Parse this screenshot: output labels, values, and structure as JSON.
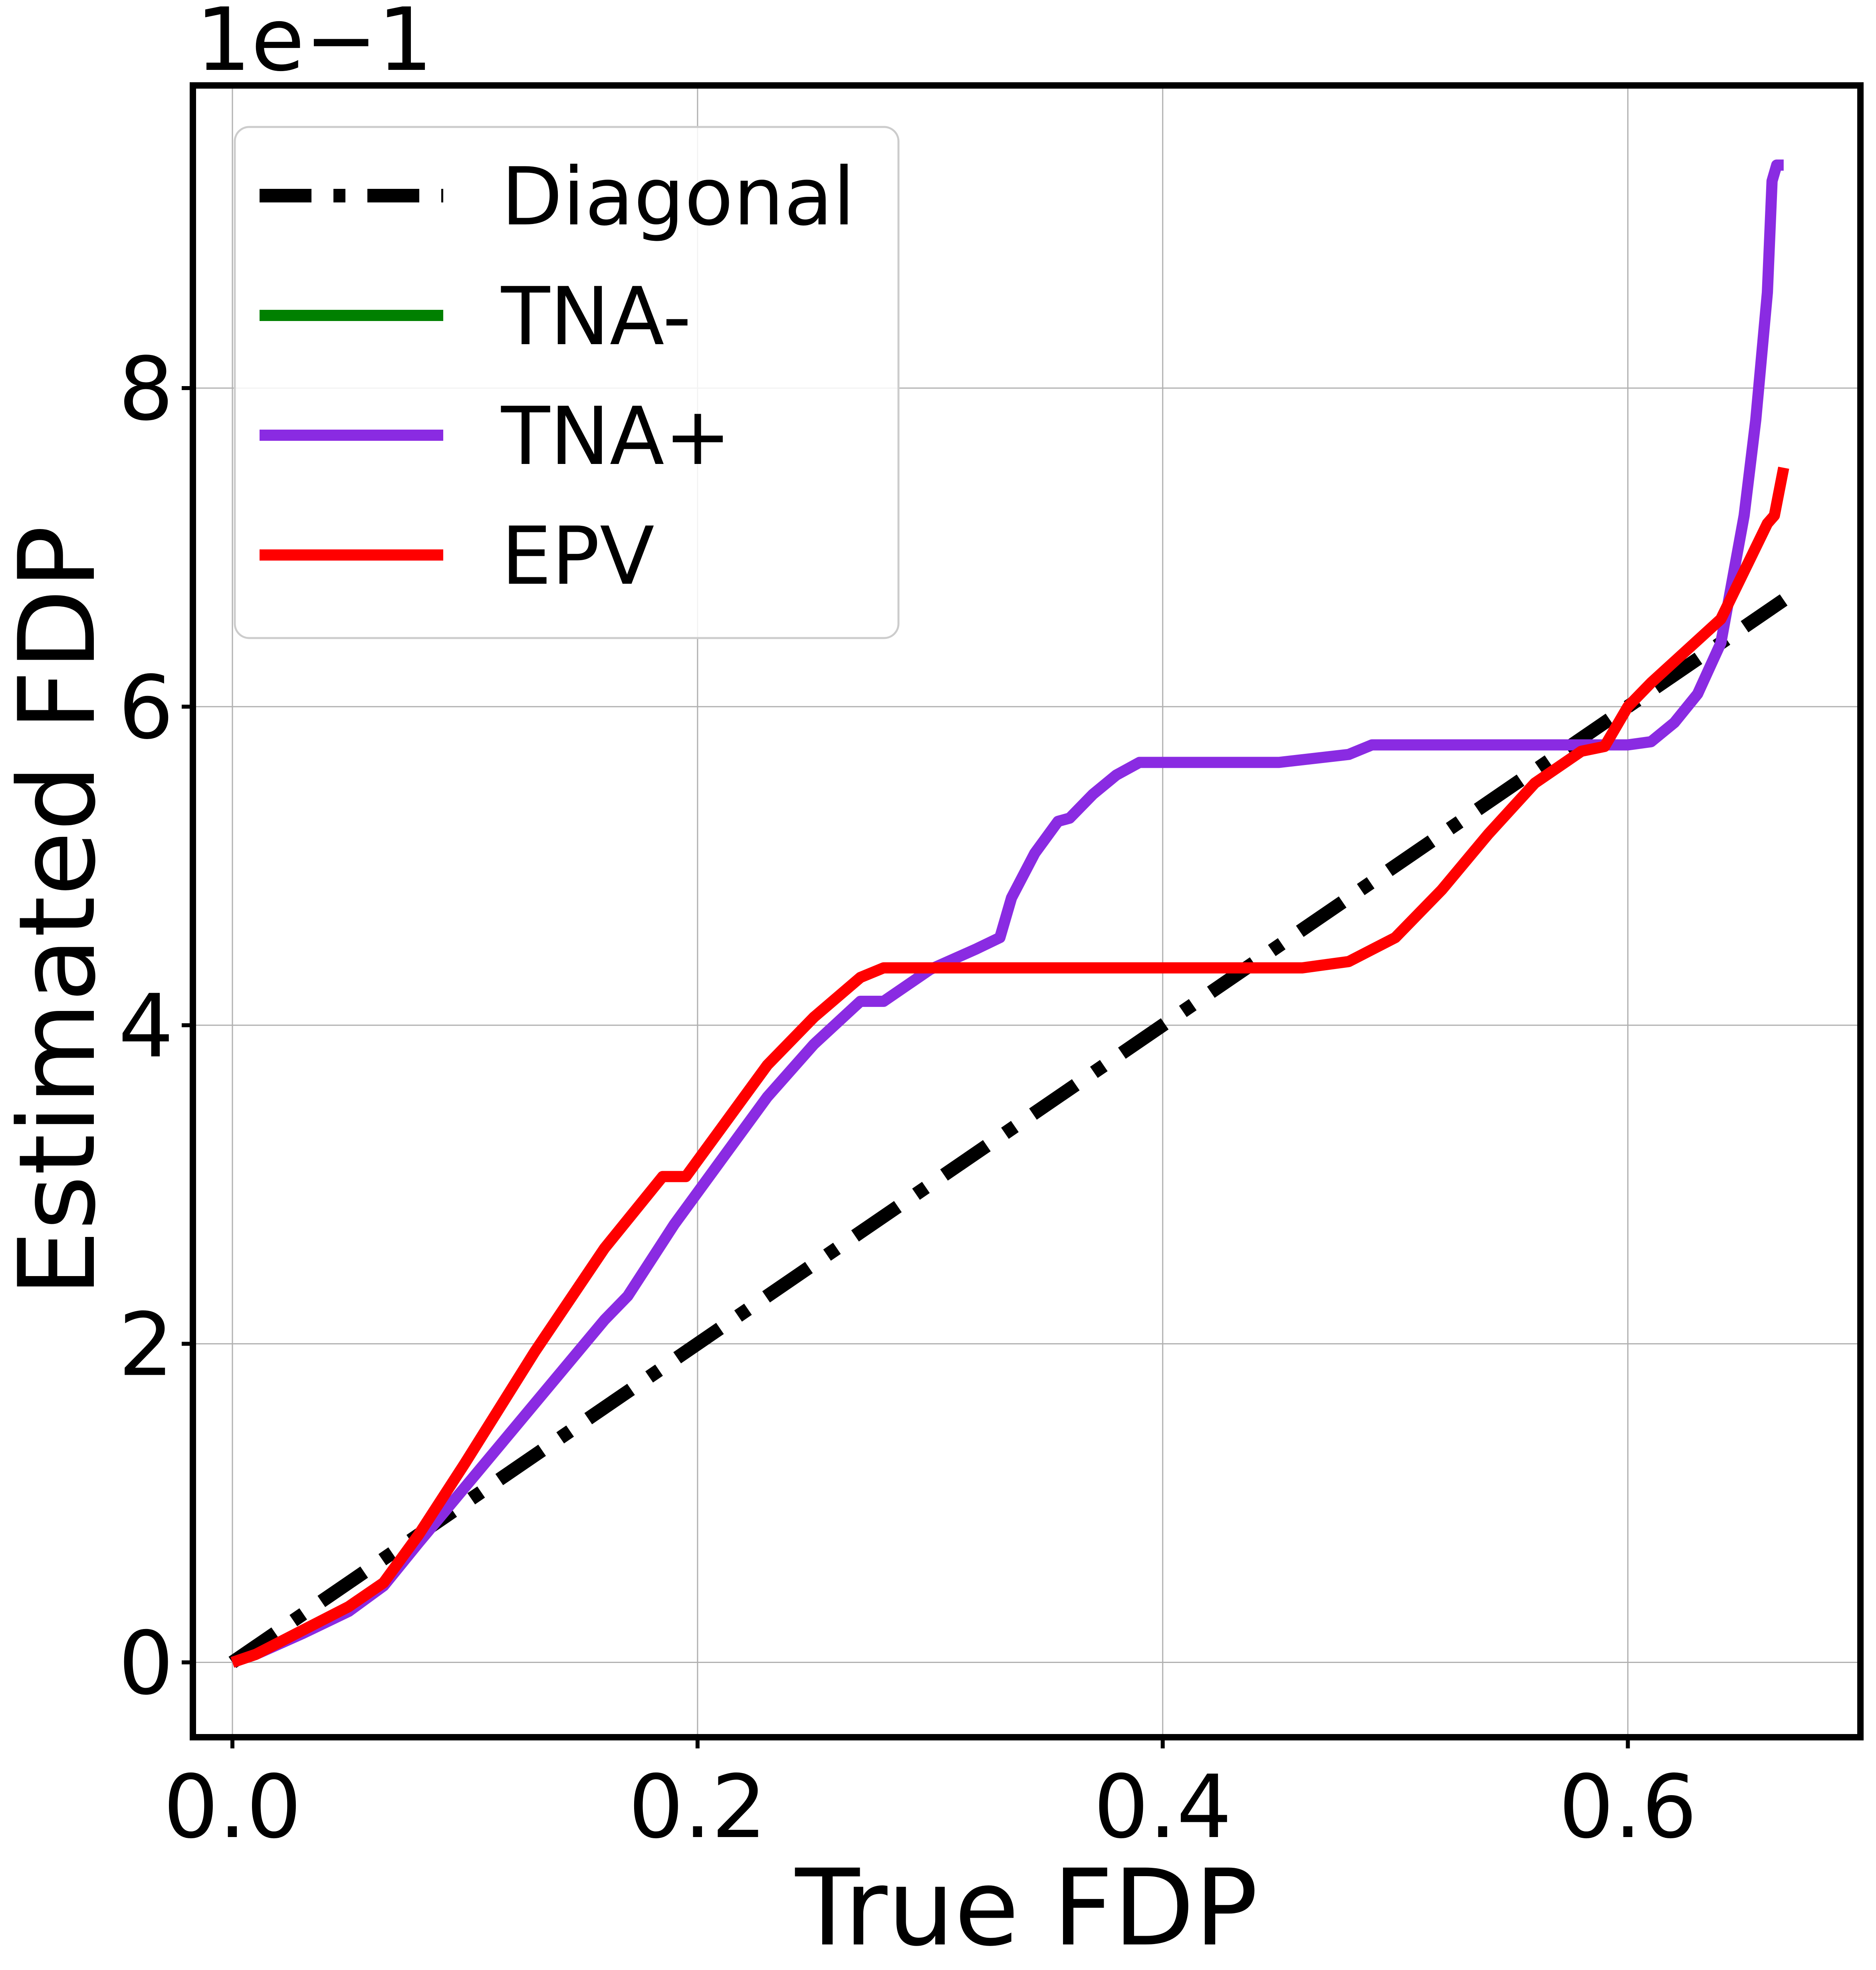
{
  "chart_data": {
    "type": "line",
    "xlabel": "True FDP",
    "ylabel": "Estimated FDP",
    "y_offset_label": "1e−1",
    "xlim": [
      -0.017,
      0.7
    ],
    "ylim": [
      -0.47,
      9.9
    ],
    "xticks": [
      0.0,
      0.2,
      0.4,
      0.6
    ],
    "xtick_labels": [
      "0.0",
      "0.2",
      "0.4",
      "0.6"
    ],
    "yticks": [
      0,
      2,
      4,
      6,
      8
    ],
    "ytick_labels": [
      "0",
      "2",
      "4",
      "6",
      "8"
    ],
    "grid": true,
    "legend_position": "top-left",
    "series": [
      {
        "name": "Diagonal",
        "color": "#000000",
        "style": "dashdot",
        "x": [
          0.0,
          0.667
        ],
        "y": [
          0.0,
          6.67
        ]
      },
      {
        "name": "TNA-",
        "color": "#008000",
        "style": "solid",
        "x": [],
        "y": []
      },
      {
        "name": "TNA+",
        "color": "#8a2be2",
        "style": "solid",
        "x": [
          0.0,
          0.01,
          0.03,
          0.05,
          0.065,
          0.08,
          0.1,
          0.12,
          0.14,
          0.16,
          0.17,
          0.19,
          0.21,
          0.23,
          0.25,
          0.27,
          0.28,
          0.3,
          0.32,
          0.33,
          0.335,
          0.345,
          0.355,
          0.36,
          0.37,
          0.38,
          0.39,
          0.41,
          0.45,
          0.48,
          0.49,
          0.55,
          0.6,
          0.61,
          0.62,
          0.63,
          0.64,
          0.65,
          0.655,
          0.66,
          0.662,
          0.664,
          0.667
        ],
        "y": [
          0.0,
          0.05,
          0.18,
          0.32,
          0.48,
          0.75,
          1.1,
          1.45,
          1.8,
          2.15,
          2.3,
          2.75,
          3.15,
          3.55,
          3.88,
          4.15,
          4.15,
          4.35,
          4.48,
          4.55,
          4.8,
          5.08,
          5.28,
          5.3,
          5.45,
          5.57,
          5.65,
          5.65,
          5.65,
          5.7,
          5.76,
          5.76,
          5.76,
          5.78,
          5.9,
          6.08,
          6.4,
          7.2,
          7.8,
          8.6,
          9.3,
          9.4,
          9.4
        ]
      },
      {
        "name": "EPV",
        "color": "#ff0000",
        "style": "solid",
        "x": [
          0.0,
          0.01,
          0.03,
          0.05,
          0.065,
          0.08,
          0.1,
          0.13,
          0.16,
          0.185,
          0.195,
          0.21,
          0.23,
          0.25,
          0.27,
          0.28,
          0.3,
          0.35,
          0.4,
          0.46,
          0.48,
          0.5,
          0.52,
          0.54,
          0.56,
          0.58,
          0.59,
          0.6,
          0.61,
          0.625,
          0.64,
          0.65,
          0.66,
          0.663,
          0.667
        ],
        "y": [
          0.0,
          0.05,
          0.2,
          0.35,
          0.5,
          0.8,
          1.25,
          1.95,
          2.6,
          3.05,
          3.05,
          3.35,
          3.75,
          4.05,
          4.3,
          4.36,
          4.36,
          4.36,
          4.36,
          4.36,
          4.4,
          4.55,
          4.85,
          5.2,
          5.52,
          5.72,
          5.75,
          6.0,
          6.15,
          6.35,
          6.55,
          6.85,
          7.15,
          7.2,
          7.5
        ]
      }
    ]
  }
}
